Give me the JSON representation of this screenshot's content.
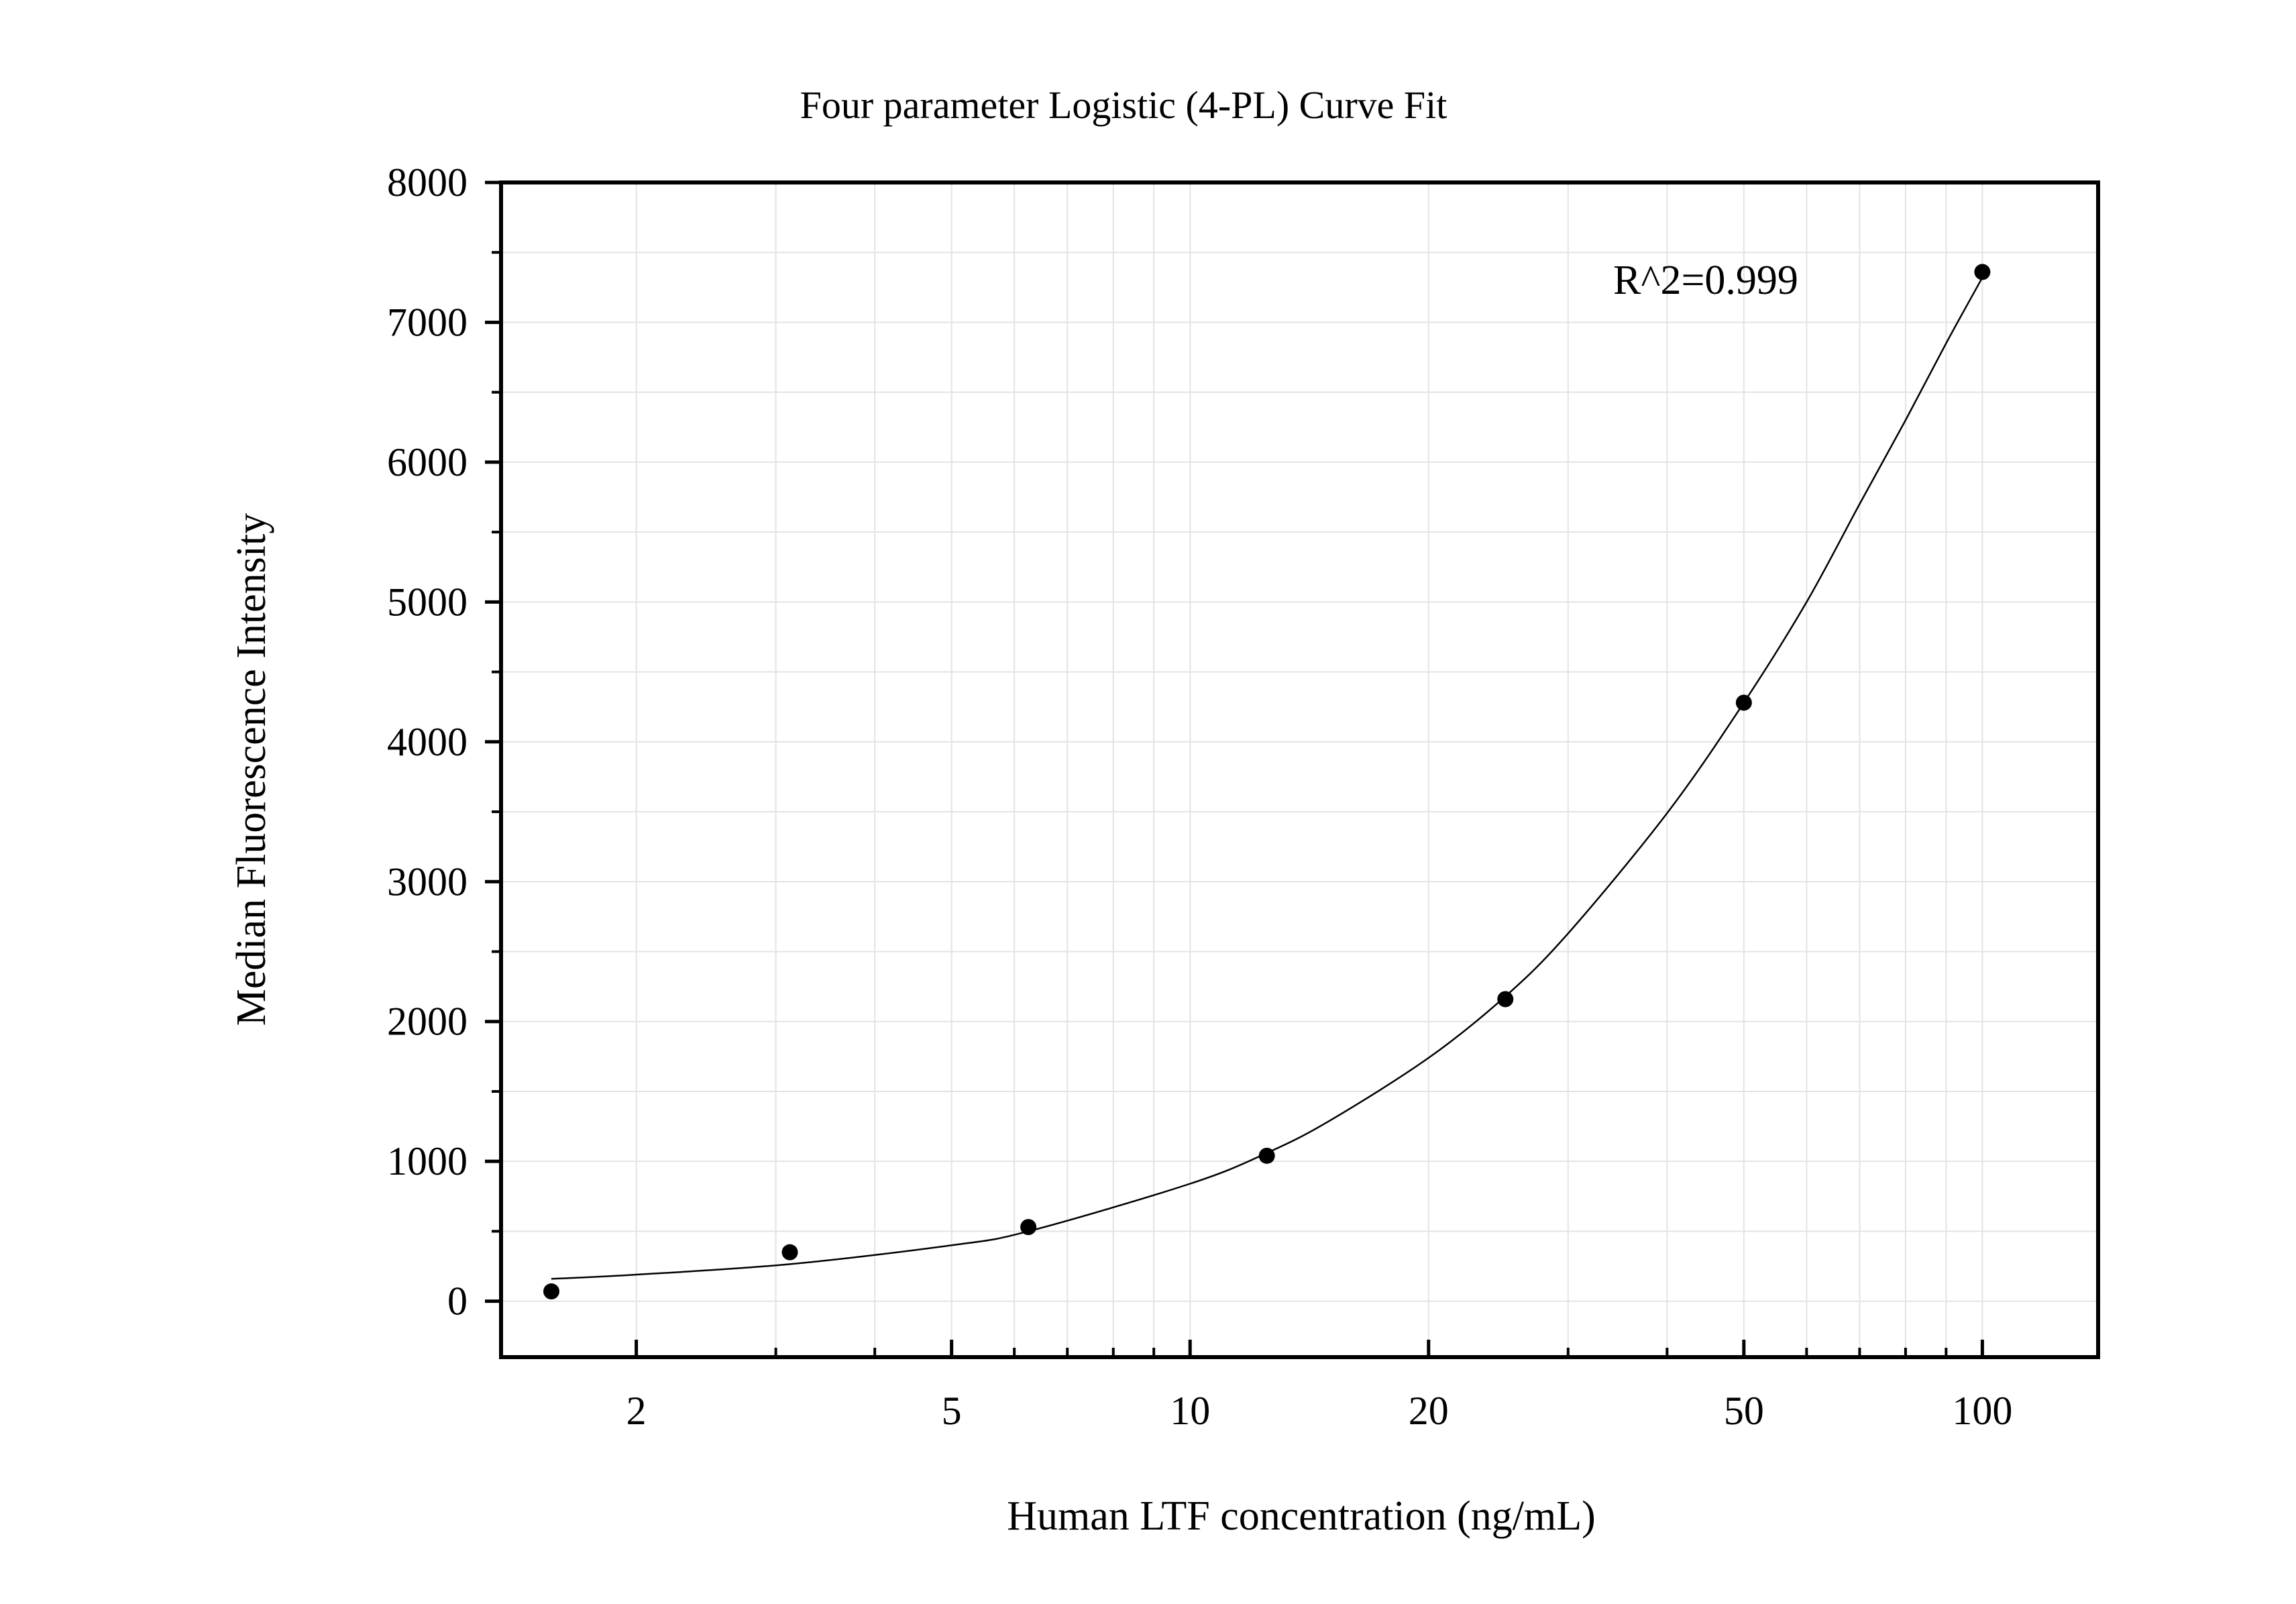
{
  "chart_data": {
    "type": "scatter",
    "title": "Four parameter Logistic (4-PL) Curve Fit",
    "xlabel": "Human LTF concentration (ng/mL)",
    "ylabel": "Median Fluorescence Intensity",
    "x_scale": "log",
    "xlim": [
      1.35,
      140
    ],
    "ylim": [
      -400,
      8000
    ],
    "x_ticks": [
      2,
      5,
      10,
      20,
      50,
      100
    ],
    "x_tick_labels": [
      "2",
      "5",
      "10",
      "20",
      "50",
      "100"
    ],
    "y_ticks": [
      0,
      1000,
      2000,
      3000,
      4000,
      5000,
      6000,
      7000,
      8000
    ],
    "y_tick_labels": [
      "0",
      "1000",
      "2000",
      "3000",
      "4000",
      "5000",
      "6000",
      "7000",
      "8000"
    ],
    "grid": true,
    "annotation": "R^2=0.999",
    "series": [
      {
        "x": [
          1.5625,
          3.125,
          6.25,
          12.5,
          25,
          50,
          100
        ],
        "y": [
          70,
          350,
          530,
          1040,
          2160,
          4280,
          7360
        ]
      }
    ],
    "fit_curve": {
      "x": [
        1.5625,
        2,
        3.125,
        5,
        6.25,
        10,
        12.5,
        15,
        20,
        25,
        30,
        40,
        50,
        60,
        70,
        80,
        90,
        100
      ],
      "y": [
        160,
        190,
        265,
        400,
        500,
        840,
        1060,
        1290,
        1740,
        2180,
        2630,
        3490,
        4280,
        5000,
        5700,
        6300,
        6850,
        7320
      ]
    }
  }
}
